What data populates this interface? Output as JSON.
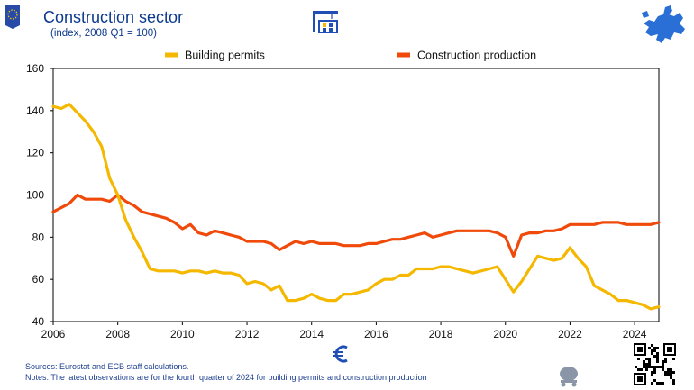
{
  "header": {
    "title": "Construction sector",
    "subtitle": "(index, 2008 Q1 = 100)"
  },
  "icons": {
    "left_logo": "eu-flag-book-icon",
    "crane": "construction-crane-icon",
    "map": "eu-map-icon",
    "euro": "euro-sign-icon",
    "mixer": "cement-mixer-icon",
    "qr": "qr-code-icon"
  },
  "colors": {
    "building_permits": "#f5b800",
    "construction_production": "#f04a0a",
    "title": "#0b3a8c",
    "euro": "#1f4fb5"
  },
  "footer": {
    "sources": "Sources: Eurostat and ECB staff calculations.",
    "notes": "Notes: The latest observations are for the fourth quarter of 2024 for building permits and construction production"
  },
  "chart_data": {
    "type": "line",
    "title": "Construction sector",
    "subtitle": "(index, 2008 Q1 = 100)",
    "legend_placement": "top",
    "grid": false,
    "xlim": [
      2006.0,
      2024.75
    ],
    "ylim": [
      40,
      160
    ],
    "x_ticks": [
      2006,
      2008,
      2010,
      2012,
      2014,
      2016,
      2018,
      2020,
      2022,
      2024
    ],
    "y_ticks": [
      40,
      60,
      80,
      100,
      120,
      140,
      160
    ],
    "x_start": 2006.0,
    "x_step": 0.25,
    "series": [
      {
        "name": "Building permits",
        "color": "#f5b800",
        "values": [
          142,
          141,
          143,
          139,
          135,
          130,
          123,
          108,
          100,
          88,
          80,
          73,
          65,
          64,
          64,
          64,
          63,
          64,
          64,
          63,
          64,
          63,
          63,
          62,
          58,
          59,
          58,
          55,
          57,
          50,
          50,
          51,
          53,
          51,
          50,
          50,
          53,
          53,
          54,
          55,
          58,
          60,
          60,
          62,
          62,
          65,
          65,
          65,
          66,
          66,
          65,
          64,
          63,
          64,
          65,
          66,
          60,
          54,
          59,
          65,
          71,
          70,
          69,
          70,
          75,
          70,
          66,
          57,
          55,
          53,
          50,
          50,
          49,
          48,
          46,
          47
        ]
      },
      {
        "name": "Construction production",
        "color": "#f04a0a",
        "values": [
          92,
          94,
          96,
          100,
          98,
          98,
          98,
          97,
          100,
          97,
          95,
          92,
          91,
          90,
          89,
          87,
          84,
          86,
          82,
          81,
          83,
          82,
          81,
          80,
          78,
          78,
          78,
          77,
          74,
          76,
          78,
          77,
          78,
          77,
          77,
          77,
          76,
          76,
          76,
          77,
          77,
          78,
          79,
          79,
          80,
          81,
          82,
          80,
          81,
          82,
          83,
          83,
          83,
          83,
          83,
          82,
          80,
          71,
          81,
          82,
          82,
          83,
          83,
          84,
          86,
          86,
          86,
          86,
          87,
          87,
          87,
          86,
          86,
          86,
          86,
          87
        ]
      }
    ]
  }
}
